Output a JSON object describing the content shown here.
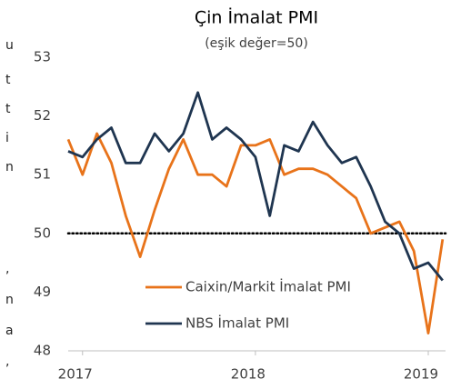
{
  "chart_data": {
    "type": "line",
    "title": "Çin İmalat PMI",
    "subtitle": "(eşik değer=50)",
    "x": [
      2016.917,
      2017.0,
      2017.083,
      2017.167,
      2017.25,
      2017.333,
      2017.417,
      2017.5,
      2017.583,
      2017.667,
      2017.75,
      2017.833,
      2017.917,
      2018.0,
      2018.083,
      2018.167,
      2018.25,
      2018.333,
      2018.417,
      2018.5,
      2018.583,
      2018.667,
      2018.75,
      2018.833,
      2018.917,
      2019.0,
      2019.083
    ],
    "series": [
      {
        "name": "Caixin/Markit İmalat PMI",
        "color": "#e8731a",
        "values": [
          51.6,
          51.0,
          51.7,
          51.2,
          50.3,
          49.6,
          50.4,
          51.1,
          51.6,
          51.0,
          51.0,
          50.8,
          51.5,
          51.5,
          51.6,
          51.0,
          51.1,
          51.1,
          51.0,
          50.8,
          50.6,
          50.0,
          50.1,
          50.2,
          49.7,
          48.3,
          49.9
        ]
      },
      {
        "name": "NBS İmalat PMI",
        "color": "#1f3550",
        "values": [
          51.4,
          51.3,
          51.6,
          51.8,
          51.2,
          51.2,
          51.7,
          51.4,
          51.7,
          52.4,
          51.6,
          51.8,
          51.6,
          51.3,
          50.3,
          51.5,
          51.4,
          51.9,
          51.5,
          51.2,
          51.3,
          50.8,
          50.2,
          50.0,
          49.4,
          49.5,
          49.2
        ]
      }
    ],
    "xlim": [
      2016.917,
      2019.1
    ],
    "xticks": [
      2017,
      2018,
      2019
    ],
    "ylim": [
      48,
      53
    ],
    "yticks": [
      48,
      49,
      50,
      51,
      52,
      53
    ],
    "reference_line": 50,
    "grid": false,
    "side_text": [
      "u",
      "t",
      "t",
      "i",
      "n",
      ",",
      "n",
      "a",
      ","
    ]
  }
}
